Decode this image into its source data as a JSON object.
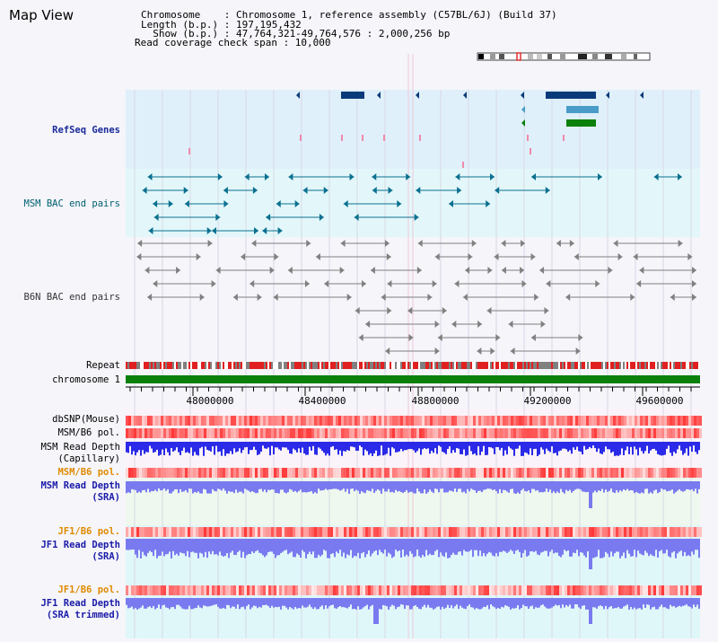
{
  "app": {
    "title": "Map View"
  },
  "header": {
    "chromosome_line": "Chromosome    : Chromosome 1, reference assembly (C57BL/6J) (Build 37)",
    "length_line": "Length (b.p.) : 197,195,432",
    "show_line": "  Show (b.p.) : 47,764,321-49,764,576 : 2,000,256 bp",
    "coverage_line": "Read coverage check span : 10,000"
  },
  "tracks": {
    "refseq": "RefSeq Genes",
    "msm_bac": "MSM BAC end pairs",
    "b6n_bac": "B6N BAC end pairs",
    "repeat": "Repeat",
    "chromosome": "chromosome 1",
    "dbsnp": "dbSNP(Mouse)",
    "msm_b6_pol_1": "MSM/B6 pol.",
    "msm_read_depth_cap_1": "MSM Read Depth",
    "msm_read_depth_cap_2": "(Capillary)",
    "msm_b6_pol_2": "MSM/B6 pol.",
    "msm_read_depth_sra_1": "MSM Read Depth",
    "msm_read_depth_sra_2": "(SRA)",
    "jf1_b6_pol_1": "JF1/B6 pol.",
    "jf1_read_depth_sra_1": "JF1 Read Depth",
    "jf1_read_depth_sra_2": "(SRA)",
    "jf1_b6_pol_2": "JF1/B6 pol.",
    "jf1_read_depth_trim_1": "JF1 Read Depth",
    "jf1_read_depth_trim_2": "(SRA trimmed)"
  },
  "axis": {
    "ticks": [
      "48000000",
      "48400000",
      "48800000",
      "49200000",
      "49600000"
    ]
  },
  "colors": {
    "refseq_bg": "#dff0fb",
    "msm_bg": "#e3f7fa",
    "b6n_bg": "#f5f5fa",
    "chromosome": "#0b800b",
    "gene_dark": "#0a3a7a",
    "gene_teal": "#4a9cc8",
    "gene_green": "#0b800b",
    "msm_feature": "#0a7090",
    "b6n_feature": "#808080",
    "depth_capillary": "#2a2ae8",
    "depth_sra": "#7a7af0"
  }
}
